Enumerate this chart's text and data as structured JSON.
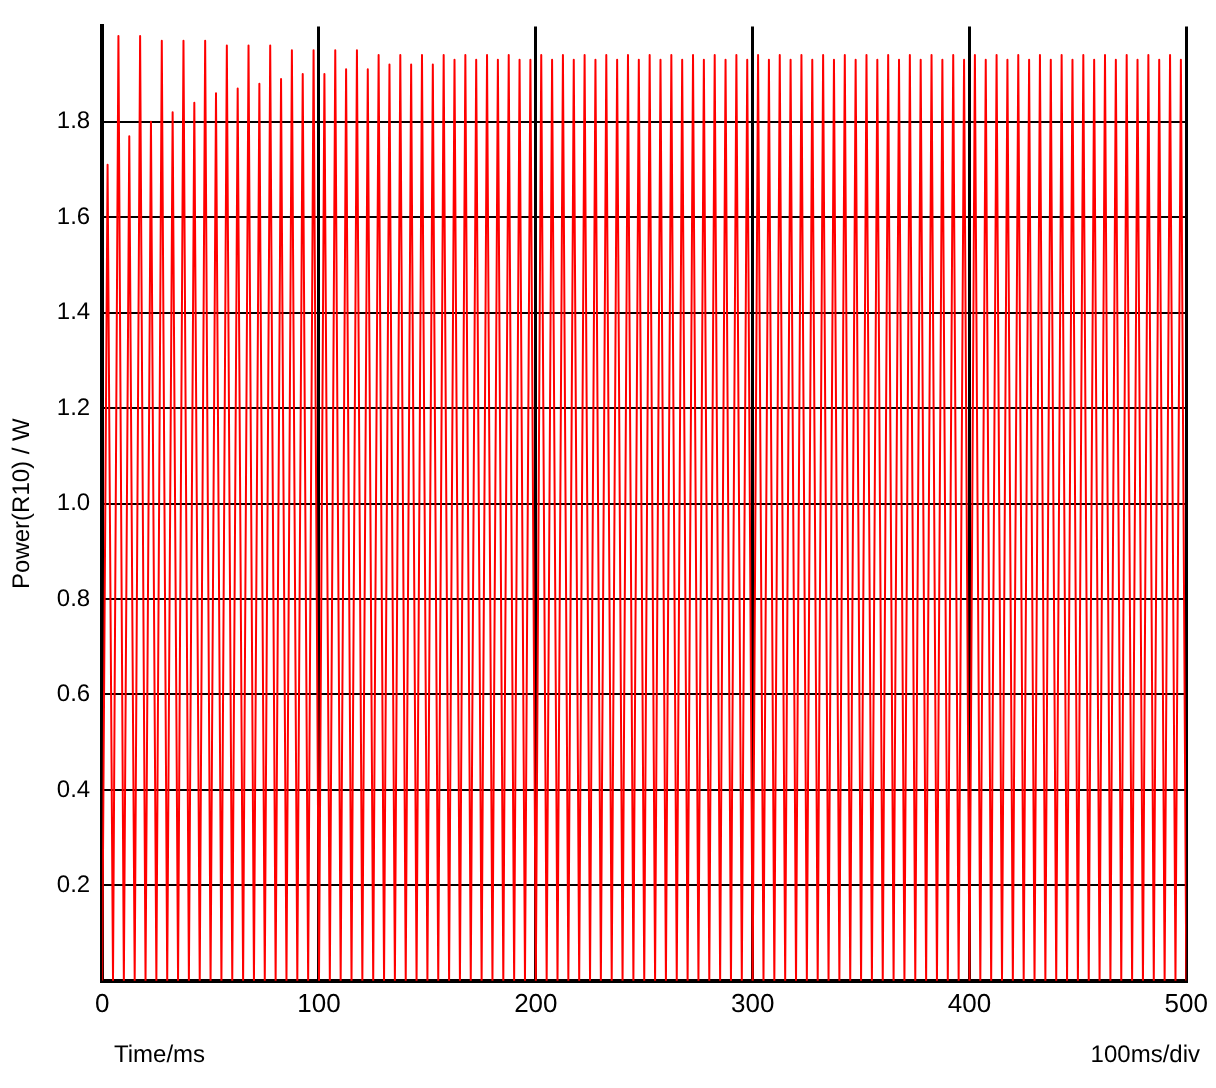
{
  "chart_data": {
    "type": "line",
    "xlabel": "Time/ms",
    "ylabel": "Power(R10) / W",
    "annotations": [
      "100ms/div"
    ],
    "xlim": [
      0,
      500
    ],
    "xticks": [
      0,
      100,
      200,
      300,
      400,
      500
    ],
    "ylim": [
      0,
      2
    ],
    "yticks": [
      0.2,
      0.4,
      0.6,
      0.8,
      {
        "value": 1,
        "label": "1.0"
      },
      1.2,
      1.4,
      1.6,
      1.8
    ],
    "grid": true,
    "legend": false,
    "marker": "none",
    "line_style": "solid",
    "x": [
      0,
      2.5,
      5,
      7.5,
      10,
      12.5,
      15,
      17.5,
      20,
      22.5,
      25,
      27.5,
      30,
      32.5,
      35,
      37.5,
      40,
      42.5,
      45,
      47.5,
      50,
      52.5,
      55,
      57.5,
      60,
      62.5,
      65,
      67.5,
      70,
      72.5,
      75,
      77.5,
      80,
      82.5,
      85,
      87.5,
      90,
      92.5,
      95,
      97.5,
      100,
      102.5,
      105,
      107.5,
      110,
      112.5,
      115,
      117.5,
      120,
      122.5,
      125,
      127.5,
      130,
      132.5,
      135,
      137.5,
      140,
      142.5,
      145,
      147.5,
      150,
      152.5,
      155,
      157.5,
      160,
      162.5,
      165,
      167.5,
      170,
      172.5,
      175,
      177.5,
      180,
      182.5,
      185,
      187.5,
      190,
      192.5,
      195,
      197.5,
      200,
      202.5,
      205,
      207.5,
      210,
      212.5,
      215,
      217.5,
      220,
      222.5,
      225,
      227.5,
      230,
      232.5,
      235,
      237.5,
      240,
      242.5,
      245,
      247.5,
      250,
      252.5,
      255,
      257.5,
      260,
      262.5,
      265,
      267.5,
      270,
      272.5,
      275,
      277.5,
      280,
      282.5,
      285,
      287.5,
      290,
      292.5,
      295,
      297.5,
      300,
      302.5,
      305,
      307.5,
      310,
      312.5,
      315,
      317.5,
      320,
      322.5,
      325,
      327.5,
      330,
      332.5,
      335,
      337.5,
      340,
      342.5,
      345,
      347.5,
      350,
      352.5,
      355,
      357.5,
      360,
      362.5,
      365,
      367.5,
      370,
      372.5,
      375,
      377.5,
      380,
      382.5,
      385,
      387.5,
      390,
      392.5,
      395,
      397.5,
      400,
      402.5,
      405,
      407.5,
      410,
      412.5,
      415,
      417.5,
      420,
      422.5,
      425,
      427.5,
      430,
      432.5,
      435,
      437.5,
      440,
      442.5,
      445,
      447.5,
      450,
      452.5,
      455,
      457.5,
      460,
      462.5,
      465,
      467.5,
      470,
      472.5,
      475,
      477.5,
      480,
      482.5,
      485,
      487.5,
      490,
      492.5,
      495,
      497.5,
      500
    ],
    "series": [
      {
        "color": "#ff0000",
        "values": [
          0,
          1.71,
          0,
          1.98,
          0,
          1.77,
          0,
          1.98,
          0,
          1.8,
          0,
          1.97,
          0,
          1.82,
          0,
          1.97,
          0,
          1.84,
          0,
          1.97,
          0,
          1.86,
          0,
          1.96,
          0,
          1.87,
          0,
          1.96,
          0,
          1.88,
          0,
          1.96,
          0,
          1.89,
          0,
          1.95,
          0,
          1.9,
          0,
          1.95,
          0,
          1.9,
          0,
          1.95,
          0,
          1.91,
          0,
          1.95,
          0,
          1.91,
          0,
          1.94,
          0,
          1.92,
          0,
          1.94,
          0,
          1.92,
          0,
          1.94,
          0,
          1.92,
          0,
          1.94,
          0,
          1.93,
          0,
          1.94,
          0,
          1.93,
          0,
          1.94,
          0,
          1.93,
          0,
          1.94,
          0,
          1.93,
          0,
          1.93,
          0,
          1.94,
          0,
          1.93,
          0,
          1.94,
          0,
          1.93,
          0,
          1.94,
          0,
          1.93,
          0,
          1.94,
          0,
          1.93,
          0,
          1.94,
          0,
          1.93,
          0,
          1.94,
          0,
          1.93,
          0,
          1.94,
          0,
          1.93,
          0,
          1.94,
          0,
          1.93,
          0,
          1.94,
          0,
          1.93,
          0,
          1.94,
          0,
          1.93,
          0,
          1.94,
          0,
          1.93,
          0,
          1.94,
          0,
          1.93,
          0,
          1.94,
          0,
          1.93,
          0,
          1.94,
          0,
          1.93,
          0,
          1.94,
          0,
          1.93,
          0,
          1.94,
          0,
          1.93,
          0,
          1.94,
          0,
          1.93,
          0,
          1.94,
          0,
          1.93,
          0,
          1.94,
          0,
          1.93,
          0,
          1.94,
          0,
          1.93,
          0,
          1.94,
          0,
          1.93,
          0,
          1.94,
          0,
          1.93,
          0,
          1.94,
          0,
          1.93,
          0,
          1.94,
          0,
          1.93,
          0,
          1.94,
          0,
          1.93,
          0,
          1.94,
          0,
          1.93,
          0,
          1.94,
          0,
          1.93,
          0,
          1.94,
          0,
          1.93,
          0,
          1.94,
          0,
          1.93,
          0,
          1.94,
          0,
          1.93,
          0
        ]
      }
    ]
  }
}
